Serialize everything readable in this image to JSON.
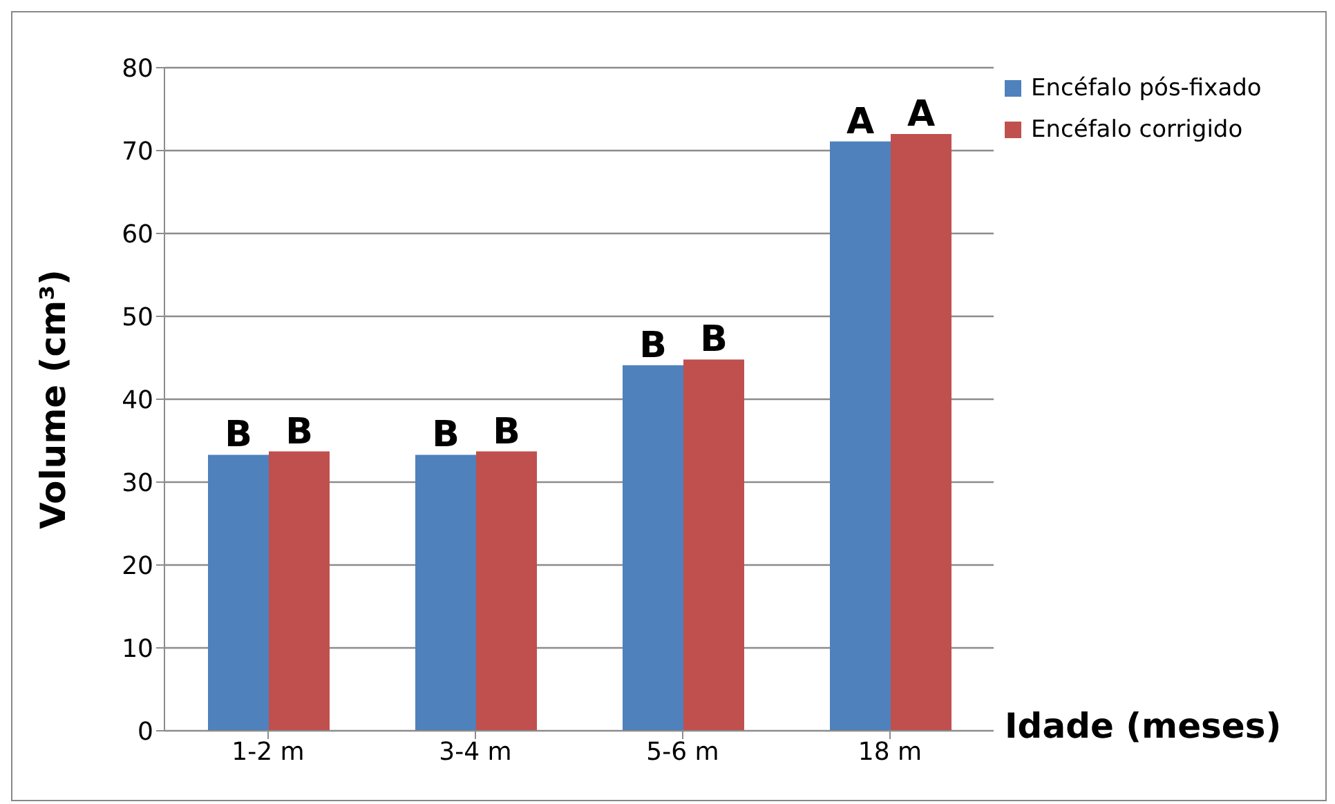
{
  "chart_data": {
    "type": "bar",
    "xlabel": "Idade (meses)",
    "ylabel": "Volume (cm³)",
    "categories": [
      "1-2 m",
      "3-4 m",
      "5-6 m",
      "18 m"
    ],
    "series": [
      {
        "name": "Encéfalo pós-fixado",
        "color": "#4f81bd",
        "values": [
          33.3,
          33.3,
          44.1,
          71.1
        ],
        "value_labels": [
          "B",
          "B",
          "B",
          "A"
        ]
      },
      {
        "name": "Encéfalo corrigido",
        "color": "#c0504d",
        "values": [
          33.7,
          33.7,
          44.8,
          72.0
        ],
        "value_labels": [
          "B",
          "B",
          "B",
          "A"
        ]
      }
    ],
    "ylim": [
      0,
      80
    ],
    "yticks": [
      0,
      10,
      20,
      30,
      40,
      50,
      60,
      70,
      80
    ],
    "grid": "y",
    "legend": "top right"
  }
}
